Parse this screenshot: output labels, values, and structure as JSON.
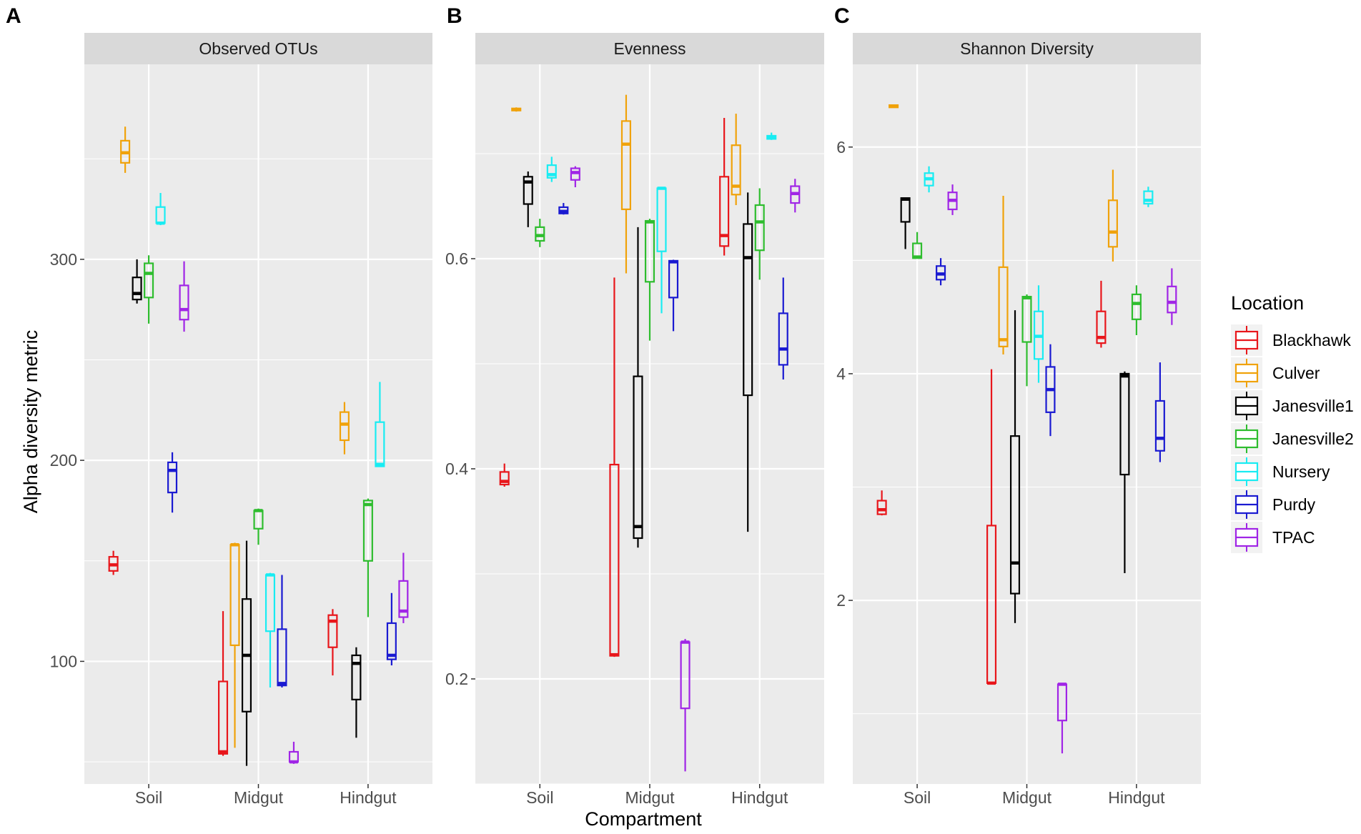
{
  "figure": {
    "ylabel": "Alpha diversity metric",
    "xlabel": "Compartment",
    "categories": [
      "Soil",
      "Midgut",
      "Hindgut"
    ],
    "legend_title": "Location",
    "colors": {
      "Blackhawk": "#e8161b",
      "Culver": "#f0a20a",
      "Janesville1": "#000000",
      "Janesville2": "#2ebd2e",
      "Nursery": "#19ecf2",
      "Purdy": "#1a1ad1",
      "TPAC": "#a025e6"
    },
    "panel_background": "#ebebeb",
    "strip_background": "#d9d9d9"
  },
  "chart_data": [
    {
      "type": "boxplot",
      "panel": "A",
      "title": "Observed OTUs",
      "xlabel": "Compartment",
      "ylabel": "Alpha diversity metric",
      "ylim": [
        39,
        397
      ],
      "yticks": [
        100,
        200,
        300
      ],
      "ytick_labels": [
        "100",
        "200",
        "300"
      ],
      "categories": [
        "Soil",
        "Midgut",
        "Hindgut"
      ],
      "series": [
        {
          "name": "Blackhawk",
          "boxes": [
            {
              "category": "Soil",
              "min": 143,
              "q1": 145,
              "median": 148,
              "q3": 152,
              "max": 155
            },
            {
              "category": "Midgut",
              "min": 53,
              "q1": 54,
              "median": 55,
              "q3": 90,
              "max": 125
            },
            {
              "category": "Hindgut",
              "min": 93,
              "q1": 107,
              "median": 120,
              "q3": 123,
              "max": 126
            }
          ]
        },
        {
          "name": "Culver",
          "boxes": [
            {
              "category": "Soil",
              "min": 343,
              "q1": 348,
              "median": 353,
              "q3": 359,
              "max": 366
            },
            {
              "category": "Midgut",
              "min": 57,
              "q1": 108,
              "median": 158,
              "q3": 158,
              "max": 159
            },
            {
              "category": "Hindgut",
              "min": 203,
              "q1": 210,
              "median": 218,
              "q3": 224,
              "max": 229
            }
          ]
        },
        {
          "name": "Janesville1",
          "boxes": [
            {
              "category": "Soil",
              "min": 278,
              "q1": 280,
              "median": 283,
              "q3": 291,
              "max": 300
            },
            {
              "category": "Midgut",
              "min": 48,
              "q1": 75,
              "median": 103,
              "q3": 131,
              "max": 160
            },
            {
              "category": "Hindgut",
              "min": 62,
              "q1": 81,
              "median": 99,
              "q3": 103,
              "max": 107
            }
          ]
        },
        {
          "name": "Janesville2",
          "boxes": [
            {
              "category": "Soil",
              "min": 268,
              "q1": 281,
              "median": 293,
              "q3": 298,
              "max": 302
            },
            {
              "category": "Midgut",
              "min": 158,
              "q1": 166,
              "median": 175,
              "q3": 175,
              "max": 176
            },
            {
              "category": "Hindgut",
              "min": 122,
              "q1": 150,
              "median": 178,
              "q3": 180,
              "max": 181
            }
          ]
        },
        {
          "name": "Nursery",
          "boxes": [
            {
              "category": "Soil",
              "min": 317,
              "q1": 318,
              "median": 318,
              "q3": 326,
              "max": 333
            },
            {
              "category": "Midgut",
              "min": 87,
              "q1": 115,
              "median": 143,
              "q3": 143,
              "max": 144
            },
            {
              "category": "Hindgut",
              "min": 197,
              "q1": 197,
              "median": 198,
              "q3": 219,
              "max": 239
            }
          ]
        },
        {
          "name": "Purdy",
          "boxes": [
            {
              "category": "Soil",
              "min": 174,
              "q1": 184,
              "median": 195,
              "q3": 199,
              "max": 204
            },
            {
              "category": "Midgut",
              "min": 87,
              "q1": 88,
              "median": 89,
              "q3": 116,
              "max": 143
            },
            {
              "category": "Hindgut",
              "min": 98,
              "q1": 101,
              "median": 103,
              "q3": 119,
              "max": 134
            }
          ]
        },
        {
          "name": "TPAC",
          "boxes": [
            {
              "category": "Soil",
              "min": 264,
              "q1": 270,
              "median": 275,
              "q3": 287,
              "max": 299
            },
            {
              "category": "Midgut",
              "min": 49,
              "q1": 50,
              "median": 50,
              "q3": 55,
              "max": 60
            },
            {
              "category": "Hindgut",
              "min": 119,
              "q1": 122,
              "median": 125,
              "q3": 140,
              "max": 154
            }
          ]
        }
      ]
    },
    {
      "type": "boxplot",
      "panel": "B",
      "title": "Evenness",
      "xlabel": "Compartment",
      "ylabel": "",
      "ylim": [
        0.1,
        0.785
      ],
      "yticks": [
        0.2,
        0.4,
        0.6
      ],
      "ytick_labels": [
        "0.2",
        "0.4",
        "0.6"
      ],
      "categories": [
        "Soil",
        "Midgut",
        "Hindgut"
      ],
      "series": [
        {
          "name": "Blackhawk",
          "boxes": [
            {
              "category": "Soil",
              "min": 0.383,
              "q1": 0.385,
              "median": 0.388,
              "q3": 0.397,
              "max": 0.405
            },
            {
              "category": "Midgut",
              "min": 0.221,
              "q1": 0.222,
              "median": 0.223,
              "q3": 0.404,
              "max": 0.582
            },
            {
              "category": "Hindgut",
              "min": 0.603,
              "q1": 0.612,
              "median": 0.622,
              "q3": 0.678,
              "max": 0.734
            }
          ]
        },
        {
          "name": "Culver",
          "boxes": [
            {
              "category": "Soil",
              "min": 0.74,
              "q1": 0.741,
              "median": 0.742,
              "q3": 0.743,
              "max": 0.744
            },
            {
              "category": "Midgut",
              "min": 0.586,
              "q1": 0.647,
              "median": 0.709,
              "q3": 0.731,
              "max": 0.756
            },
            {
              "category": "Hindgut",
              "min": 0.651,
              "q1": 0.661,
              "median": 0.669,
              "q3": 0.708,
              "max": 0.738
            }
          ]
        },
        {
          "name": "Janesville1",
          "boxes": [
            {
              "category": "Soil",
              "min": 0.63,
              "q1": 0.652,
              "median": 0.673,
              "q3": 0.678,
              "max": 0.683
            },
            {
              "category": "Midgut",
              "min": 0.325,
              "q1": 0.334,
              "median": 0.345,
              "q3": 0.488,
              "max": 0.63
            },
            {
              "category": "Hindgut",
              "min": 0.34,
              "q1": 0.47,
              "median": 0.601,
              "q3": 0.633,
              "max": 0.663
            }
          ]
        },
        {
          "name": "Janesville2",
          "boxes": [
            {
              "category": "Soil",
              "min": 0.611,
              "q1": 0.617,
              "median": 0.622,
              "q3": 0.63,
              "max": 0.638
            },
            {
              "category": "Midgut",
              "min": 0.522,
              "q1": 0.578,
              "median": 0.635,
              "q3": 0.636,
              "max": 0.638
            },
            {
              "category": "Hindgut",
              "min": 0.58,
              "q1": 0.608,
              "median": 0.635,
              "q3": 0.651,
              "max": 0.667
            }
          ]
        },
        {
          "name": "Nursery",
          "boxes": [
            {
              "category": "Soil",
              "min": 0.673,
              "q1": 0.677,
              "median": 0.68,
              "q3": 0.689,
              "max": 0.697
            },
            {
              "category": "Midgut",
              "min": 0.548,
              "q1": 0.607,
              "median": 0.667,
              "q3": 0.667,
              "max": 0.668
            },
            {
              "category": "Hindgut",
              "min": 0.713,
              "q1": 0.714,
              "median": 0.715,
              "q3": 0.717,
              "max": 0.72
            }
          ]
        },
        {
          "name": "Purdy",
          "boxes": [
            {
              "category": "Soil",
              "min": 0.642,
              "q1": 0.643,
              "median": 0.645,
              "q3": 0.649,
              "max": 0.653
            },
            {
              "category": "Midgut",
              "min": 0.531,
              "q1": 0.563,
              "median": 0.597,
              "q3": 0.598,
              "max": 0.599
            },
            {
              "category": "Hindgut",
              "min": 0.485,
              "q1": 0.499,
              "median": 0.514,
              "q3": 0.548,
              "max": 0.582
            }
          ]
        },
        {
          "name": "TPAC",
          "boxes": [
            {
              "category": "Soil",
              "min": 0.668,
              "q1": 0.675,
              "median": 0.682,
              "q3": 0.686,
              "max": 0.688
            },
            {
              "category": "Midgut",
              "min": 0.112,
              "q1": 0.172,
              "median": 0.235,
              "q3": 0.235,
              "max": 0.238
            },
            {
              "category": "Hindgut",
              "min": 0.644,
              "q1": 0.653,
              "median": 0.662,
              "q3": 0.669,
              "max": 0.676
            }
          ]
        }
      ]
    },
    {
      "type": "boxplot",
      "panel": "C",
      "title": "Shannon Diversity",
      "xlabel": "Compartment",
      "ylabel": "",
      "ylim": [
        0.38,
        6.73
      ],
      "yticks": [
        2,
        4,
        6
      ],
      "ytick_labels": [
        "2",
        "4",
        "6"
      ],
      "categories": [
        "Soil",
        "Midgut",
        "Hindgut"
      ],
      "series": [
        {
          "name": "Blackhawk",
          "boxes": [
            {
              "category": "Soil",
              "min": 2.75,
              "q1": 2.76,
              "median": 2.8,
              "q3": 2.88,
              "max": 2.97
            },
            {
              "category": "Midgut",
              "min": 1.26,
              "q1": 1.27,
              "median": 1.27,
              "q3": 2.66,
              "max": 4.04
            },
            {
              "category": "Hindgut",
              "min": 4.23,
              "q1": 4.27,
              "median": 4.32,
              "q3": 4.55,
              "max": 4.82
            }
          ]
        },
        {
          "name": "Culver",
          "boxes": [
            {
              "category": "Soil",
              "min": 6.35,
              "q1": 6.35,
              "median": 6.36,
              "q3": 6.37,
              "max": 6.37
            },
            {
              "category": "Midgut",
              "min": 4.17,
              "q1": 4.24,
              "median": 4.3,
              "q3": 4.94,
              "max": 5.57
            },
            {
              "category": "Hindgut",
              "min": 4.99,
              "q1": 5.12,
              "median": 5.25,
              "q3": 5.53,
              "max": 5.8
            }
          ]
        },
        {
          "name": "Janesville1",
          "boxes": [
            {
              "category": "Soil",
              "min": 5.1,
              "q1": 5.34,
              "median": 5.54,
              "q3": 5.55,
              "max": 5.55
            },
            {
              "category": "Midgut",
              "min": 1.8,
              "q1": 2.06,
              "median": 2.33,
              "q3": 3.45,
              "max": 4.56
            },
            {
              "category": "Hindgut",
              "min": 2.24,
              "q1": 3.11,
              "median": 3.98,
              "q3": 4.0,
              "max": 4.02
            }
          ]
        },
        {
          "name": "Janesville2",
          "boxes": [
            {
              "category": "Soil",
              "min": 5.02,
              "q1": 5.02,
              "median": 5.03,
              "q3": 5.15,
              "max": 5.25
            },
            {
              "category": "Midgut",
              "min": 3.89,
              "q1": 4.28,
              "median": 4.67,
              "q3": 4.68,
              "max": 4.7
            },
            {
              "category": "Hindgut",
              "min": 4.34,
              "q1": 4.48,
              "median": 4.62,
              "q3": 4.7,
              "max": 4.78
            }
          ]
        },
        {
          "name": "Nursery",
          "boxes": [
            {
              "category": "Soil",
              "min": 5.6,
              "q1": 5.66,
              "median": 5.72,
              "q3": 5.77,
              "max": 5.83
            },
            {
              "category": "Midgut",
              "min": 3.92,
              "q1": 4.13,
              "median": 4.33,
              "q3": 4.55,
              "max": 4.78
            },
            {
              "category": "Hindgut",
              "min": 5.47,
              "q1": 5.5,
              "median": 5.53,
              "q3": 5.61,
              "max": 5.65
            }
          ]
        },
        {
          "name": "Purdy",
          "boxes": [
            {
              "category": "Soil",
              "min": 4.78,
              "q1": 4.83,
              "median": 4.88,
              "q3": 4.95,
              "max": 5.02
            },
            {
              "category": "Midgut",
              "min": 3.45,
              "q1": 3.66,
              "median": 3.86,
              "q3": 4.06,
              "max": 4.26
            },
            {
              "category": "Hindgut",
              "min": 3.22,
              "q1": 3.32,
              "median": 3.43,
              "q3": 3.76,
              "max": 4.1
            }
          ]
        },
        {
          "name": "TPAC",
          "boxes": [
            {
              "category": "Soil",
              "min": 5.4,
              "q1": 5.45,
              "median": 5.53,
              "q3": 5.6,
              "max": 5.67
            },
            {
              "category": "Midgut",
              "min": 0.65,
              "q1": 0.94,
              "median": 1.26,
              "q3": 1.26,
              "max": 1.27
            },
            {
              "category": "Hindgut",
              "min": 4.43,
              "q1": 4.54,
              "median": 4.63,
              "q3": 4.77,
              "max": 4.93
            }
          ]
        }
      ]
    }
  ]
}
